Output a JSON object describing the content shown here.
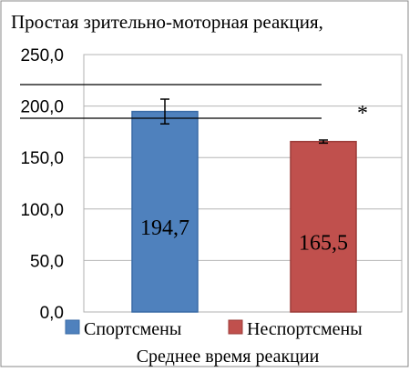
{
  "chart_data": {
    "type": "bar",
    "title": "Простая зрительно-моторная реакция,",
    "xlabel": "Среднее время реакции",
    "ylabel": "",
    "ylim": [
      0,
      250
    ],
    "yticks": [
      0,
      50,
      100,
      150,
      200,
      250
    ],
    "ytick_labels": [
      "0,0",
      "50,0",
      "100,0",
      "150,0",
      "200,0",
      "250,0"
    ],
    "grid": true,
    "legend_position": "bottom",
    "series": [
      {
        "name": "Спортсмены",
        "value": 194.7,
        "label": "194,7",
        "error": 12,
        "color": "#4f81bd",
        "edge": "#3a6ba6"
      },
      {
        "name": "Неспортсмены",
        "value": 165.5,
        "label": "165,5",
        "error": 1.5,
        "color": "#c0504d",
        "edge": "#9c3c39"
      }
    ],
    "significance_bracket": {
      "from": 0,
      "to": 1,
      "marker": "*"
    }
  }
}
